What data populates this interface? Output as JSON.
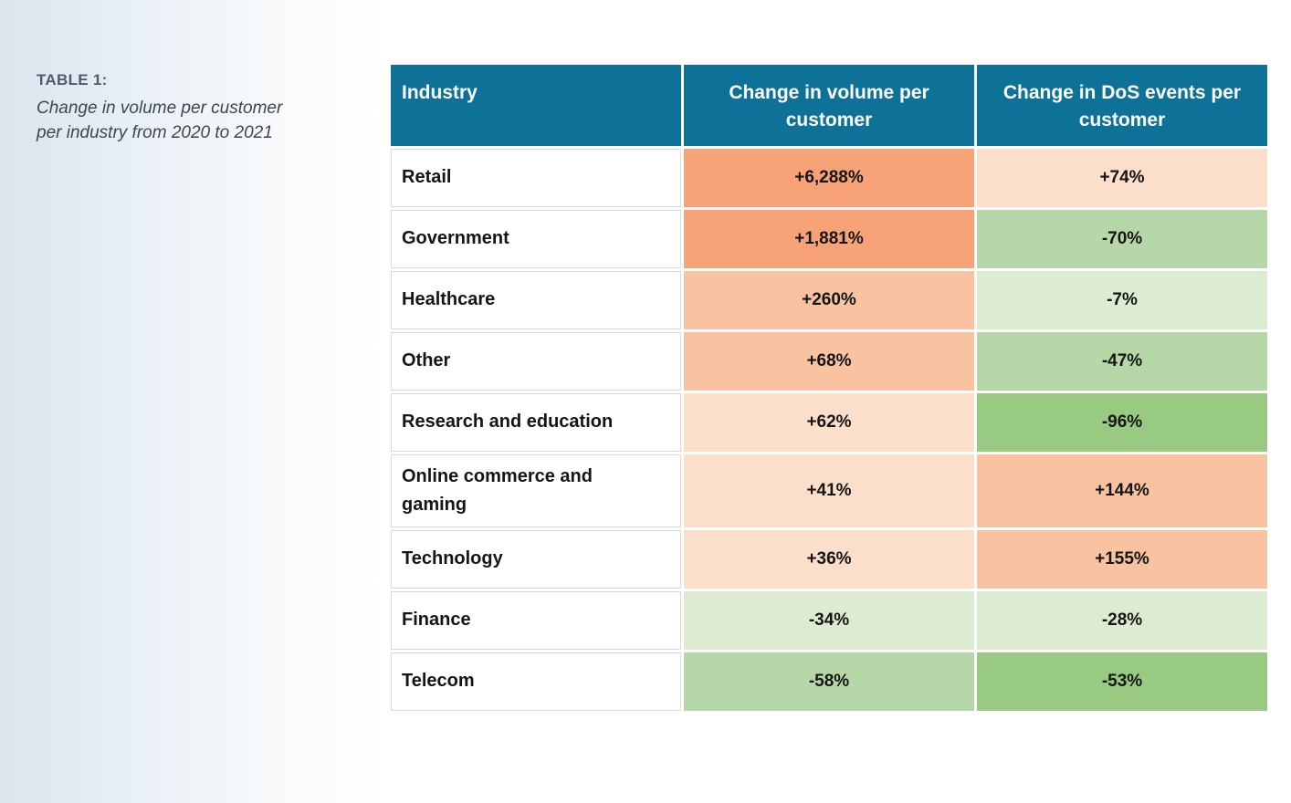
{
  "caption": {
    "label": "TABLE 1:",
    "line1": "Change in volume per customer",
    "line2": "per industry from 2020 to 2021"
  },
  "colors": {
    "header_teal": "#0d7198",
    "orange_strong": "#f7a377",
    "orange_medium": "#f9c3a2",
    "peach_light": "#fcdfca",
    "green_light": "#dcebd1",
    "green_medium": "#b6d8a8",
    "green_dark": "#99ca81"
  },
  "table": {
    "columns": [
      "Industry",
      "Change in volume per customer",
      "Change in DoS events per customer"
    ],
    "rows": [
      {
        "industry": "Retail",
        "volume": "+6,288%",
        "dos": "+74%",
        "volume_color": "orange_strong",
        "dos_color": "peach_light"
      },
      {
        "industry": "Government",
        "volume": "+1,881%",
        "dos": "-70%",
        "volume_color": "orange_strong",
        "dos_color": "green_medium"
      },
      {
        "industry": "Healthcare",
        "volume": "+260%",
        "dos": "-7%",
        "volume_color": "orange_medium",
        "dos_color": "green_light"
      },
      {
        "industry": "Other",
        "volume": "+68%",
        "dos": "-47%",
        "volume_color": "orange_medium",
        "dos_color": "green_medium"
      },
      {
        "industry": "Research and education",
        "volume": "+62%",
        "dos": "-96%",
        "volume_color": "peach_light",
        "dos_color": "green_dark"
      },
      {
        "industry": "Online commerce and gaming",
        "volume": "+41%",
        "dos": "+144%",
        "volume_color": "peach_light",
        "dos_color": "orange_medium"
      },
      {
        "industry": "Technology",
        "volume": "+36%",
        "dos": "+155%",
        "volume_color": "peach_light",
        "dos_color": "orange_medium"
      },
      {
        "industry": "Finance",
        "volume": "-34%",
        "dos": "-28%",
        "volume_color": "green_light",
        "dos_color": "green_light"
      },
      {
        "industry": "Telecom",
        "volume": "-58%",
        "dos": "-53%",
        "volume_color": "green_medium",
        "dos_color": "green_dark"
      }
    ]
  }
}
